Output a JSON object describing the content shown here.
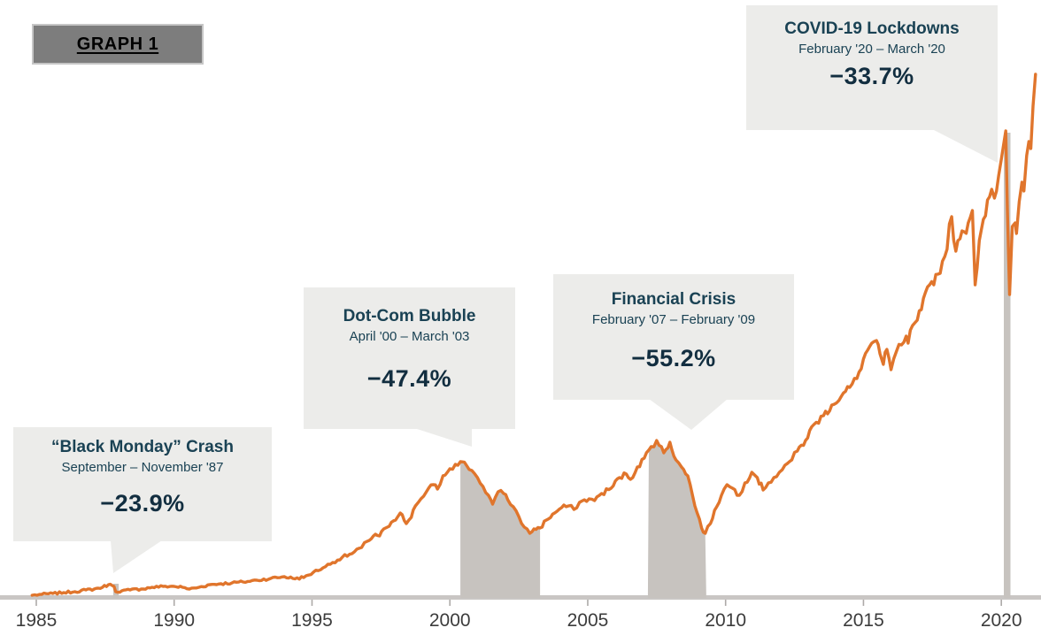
{
  "header": {
    "graph_label": "GRAPH 1"
  },
  "colors": {
    "line_orange": "#e0752c",
    "band_gray": "#c7c3bf",
    "callout_bg": "#ececea",
    "text_navy": "#1a4254",
    "decline_navy": "#122e40",
    "axis_bar": "#c9c6c4",
    "axis_tick": "#adaaa8",
    "axis_label": "#3c3c3c",
    "badge_bg": "#7d7d7d",
    "badge_border": "#c6c6c6"
  },
  "annotations": [
    {
      "id": "black-monday",
      "title": "“Black Monday” Crash",
      "period": "September – November '87",
      "decline": "−23.9%"
    },
    {
      "id": "dot-com",
      "title": "Dot-Com Bubble",
      "period": "April '00 – March '03",
      "decline": "−47.4%"
    },
    {
      "id": "financial-crisis",
      "title": "Financial Crisis",
      "period": "February '07 – February '09",
      "decline": "−55.2%"
    },
    {
      "id": "covid",
      "title": "COVID-19 Lockdowns",
      "period": "February '20 – March '20",
      "decline": "−33.7%"
    }
  ],
  "chart_data": {
    "type": "line",
    "grid": false,
    "legend": false,
    "x_range": [
      1984.85,
      2021.3
    ],
    "value_units": "index level, relative units (0 = baseline; no y-axis shown)",
    "x_ticks": [
      {
        "label": "1985",
        "year": 1985
      },
      {
        "label": "1990",
        "year": 1990
      },
      {
        "label": "1995",
        "year": 1995
      },
      {
        "label": "2000",
        "year": 2000
      },
      {
        "label": "2005",
        "year": 2005
      },
      {
        "label": "2010",
        "year": 2010
      },
      {
        "label": "2015",
        "year": 2015
      },
      {
        "label": "2020",
        "year": 2020
      }
    ],
    "crash_bands": [
      {
        "event": "black-monday",
        "x1": 1987.79,
        "x2": 1987.99,
        "mode": "rect",
        "top_v": 16,
        "decline_pct": -23.9
      },
      {
        "event": "dot-com",
        "x1": 2000.38,
        "x2": 2003.27,
        "mode": "under-line",
        "decline_pct": -47.4
      },
      {
        "event": "financial-crisis",
        "x1": 2007.18,
        "x2": 2009.3,
        "mode": "under-line",
        "decline_pct": -55.2
      },
      {
        "event": "covid",
        "x1": 2020.09,
        "x2": 2020.33,
        "mode": "rect",
        "top_v": 526,
        "decline_pct": -33.7
      }
    ],
    "series": [
      {
        "name": "stock-market-index",
        "color": "#e0752c",
        "points": [
          [
            1984.85,
            3
          ],
          [
            1985.2,
            4
          ],
          [
            1985.6,
            5
          ],
          [
            1986.0,
            6
          ],
          [
            1986.4,
            7
          ],
          [
            1986.8,
            9
          ],
          [
            1987.1,
            10
          ],
          [
            1987.4,
            12
          ],
          [
            1987.62,
            15
          ],
          [
            1987.75,
            14
          ],
          [
            1987.82,
            13
          ],
          [
            1987.88,
            7
          ],
          [
            1988.1,
            8
          ],
          [
            1988.4,
            9
          ],
          [
            1988.8,
            10
          ],
          [
            1989.2,
            12
          ],
          [
            1989.6,
            13
          ],
          [
            1990.0,
            13
          ],
          [
            1990.3,
            12
          ],
          [
            1990.55,
            10
          ],
          [
            1990.9,
            12
          ],
          [
            1991.3,
            15
          ],
          [
            1991.7,
            16
          ],
          [
            1992.1,
            17
          ],
          [
            1992.5,
            18
          ],
          [
            1993.0,
            20
          ],
          [
            1993.5,
            22
          ],
          [
            1994.0,
            24
          ],
          [
            1994.3,
            22
          ],
          [
            1994.7,
            23
          ],
          [
            1995.05,
            29
          ],
          [
            1995.4,
            34
          ],
          [
            1995.75,
            40
          ],
          [
            1996.1,
            46
          ],
          [
            1996.45,
            50
          ],
          [
            1996.8,
            57
          ],
          [
            1997.0,
            64
          ],
          [
            1997.3,
            72
          ],
          [
            1997.45,
            70
          ],
          [
            1997.6,
            78
          ],
          [
            1997.8,
            81
          ],
          [
            1998.03,
            88
          ],
          [
            1998.2,
            96
          ],
          [
            1998.42,
            84
          ],
          [
            1998.6,
            91
          ],
          [
            1998.75,
            104
          ],
          [
            1998.95,
            112
          ],
          [
            1999.15,
            120
          ],
          [
            1999.4,
            128
          ],
          [
            1999.55,
            123
          ],
          [
            1999.75,
            138
          ],
          [
            2000.0,
            146
          ],
          [
            2000.2,
            151
          ],
          [
            2000.38,
            154
          ],
          [
            2000.6,
            150
          ],
          [
            2000.8,
            144
          ],
          [
            2001.0,
            136
          ],
          [
            2001.2,
            126
          ],
          [
            2001.4,
            116
          ],
          [
            2001.55,
            106
          ],
          [
            2001.75,
            120
          ],
          [
            2001.95,
            118
          ],
          [
            2002.1,
            111
          ],
          [
            2002.3,
            103
          ],
          [
            2002.5,
            92
          ],
          [
            2002.7,
            80
          ],
          [
            2002.9,
            73
          ],
          [
            2003.05,
            78
          ],
          [
            2003.27,
            79
          ],
          [
            2003.5,
            88
          ],
          [
            2003.8,
            96
          ],
          [
            2004.05,
            102
          ],
          [
            2004.3,
            104
          ],
          [
            2004.5,
            100
          ],
          [
            2004.7,
            108
          ],
          [
            2005.05,
            112
          ],
          [
            2005.25,
            110
          ],
          [
            2005.5,
            118
          ],
          [
            2005.85,
            124
          ],
          [
            2006.15,
            136
          ],
          [
            2006.4,
            140
          ],
          [
            2006.55,
            134
          ],
          [
            2006.8,
            148
          ],
          [
            2007.05,
            158
          ],
          [
            2007.3,
            171
          ],
          [
            2007.5,
            178
          ],
          [
            2007.76,
            164
          ],
          [
            2007.98,
            176
          ],
          [
            2008.2,
            156
          ],
          [
            2008.4,
            148
          ],
          [
            2008.63,
            138
          ],
          [
            2008.8,
            116
          ],
          [
            2008.97,
            96
          ],
          [
            2009.13,
            79
          ],
          [
            2009.26,
            73
          ],
          [
            2009.45,
            84
          ],
          [
            2009.6,
            99
          ],
          [
            2009.85,
            116
          ],
          [
            2010.05,
            128
          ],
          [
            2010.25,
            124
          ],
          [
            2010.5,
            116
          ],
          [
            2010.7,
            130
          ],
          [
            2010.95,
            142
          ],
          [
            2011.15,
            136
          ],
          [
            2011.36,
            122
          ],
          [
            2011.55,
            130
          ],
          [
            2011.75,
            136
          ],
          [
            2011.95,
            142
          ],
          [
            2012.15,
            150
          ],
          [
            2012.4,
            156
          ],
          [
            2012.6,
            166
          ],
          [
            2012.9,
            178
          ],
          [
            2013.2,
            196
          ],
          [
            2013.55,
            206
          ],
          [
            2013.85,
            218
          ],
          [
            2014.2,
            228
          ],
          [
            2014.5,
            238
          ],
          [
            2014.76,
            248
          ],
          [
            2015.0,
            270
          ],
          [
            2015.15,
            280
          ],
          [
            2015.3,
            288
          ],
          [
            2015.47,
            291
          ],
          [
            2015.6,
            276
          ],
          [
            2015.72,
            264
          ],
          [
            2015.85,
            281
          ],
          [
            2016.0,
            258
          ],
          [
            2016.2,
            279
          ],
          [
            2016.38,
            286
          ],
          [
            2016.55,
            296
          ],
          [
            2016.62,
            288
          ],
          [
            2016.78,
            308
          ],
          [
            2016.95,
            314
          ],
          [
            2017.1,
            326
          ],
          [
            2017.4,
            354
          ],
          [
            2017.7,
            366
          ],
          [
            2017.95,
            386
          ],
          [
            2018.2,
            431
          ],
          [
            2018.35,
            392
          ],
          [
            2018.5,
            406
          ],
          [
            2018.65,
            414
          ],
          [
            2018.8,
            424
          ],
          [
            2018.95,
            438
          ],
          [
            2019.05,
            354
          ],
          [
            2019.2,
            404
          ],
          [
            2019.35,
            428
          ],
          [
            2019.5,
            450
          ],
          [
            2019.65,
            462
          ],
          [
            2019.75,
            452
          ],
          [
            2019.9,
            477
          ],
          [
            2020.0,
            496
          ],
          [
            2020.1,
            516
          ],
          [
            2020.16,
            528
          ],
          [
            2020.22,
            440
          ],
          [
            2020.3,
            343
          ],
          [
            2020.4,
            420
          ],
          [
            2020.5,
            424
          ],
          [
            2020.55,
            412
          ],
          [
            2020.65,
            448
          ],
          [
            2020.75,
            470
          ],
          [
            2020.82,
            460
          ],
          [
            2020.92,
            500
          ],
          [
            2021.0,
            516
          ],
          [
            2021.07,
            508
          ],
          [
            2021.15,
            556
          ],
          [
            2021.24,
            592
          ]
        ]
      }
    ]
  }
}
